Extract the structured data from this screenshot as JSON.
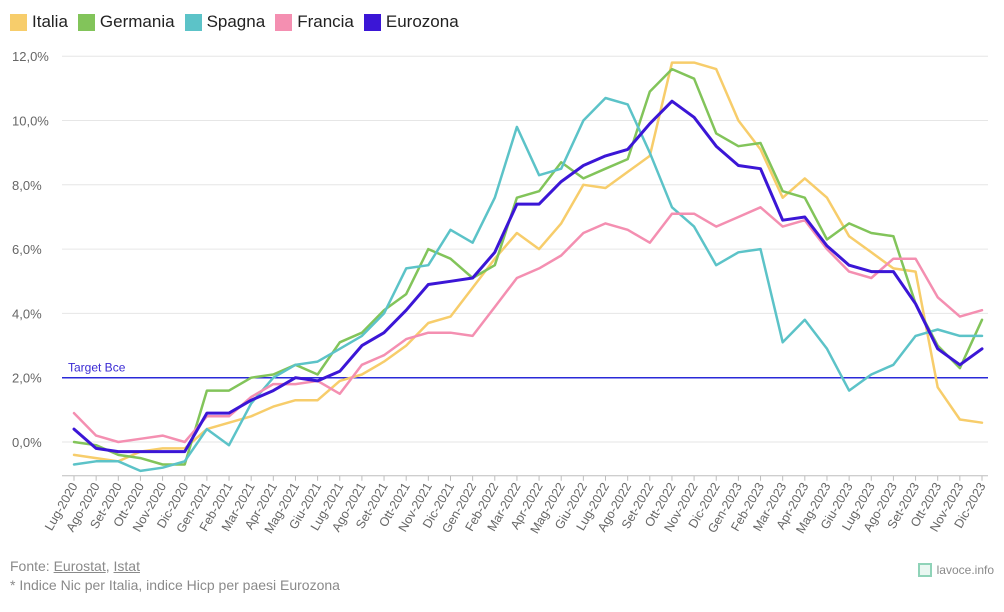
{
  "legend": [
    {
      "name": "Italia",
      "color": "#f7cd6b"
    },
    {
      "name": "Germania",
      "color": "#82c45a"
    },
    {
      "name": "Spagna",
      "color": "#5cc3c8"
    },
    {
      "name": "Francia",
      "color": "#f48fb1"
    },
    {
      "name": "Eurozona",
      "color": "#3b16d6"
    }
  ],
  "footer": {
    "prefix": "Fonte: ",
    "source1": "Eurostat",
    "sep": ", ",
    "source2": "Istat",
    "note": "* Indice Nic per Italia, indice Hicp per paesi Eurozona"
  },
  "brand": {
    "label": "lavoce.info"
  },
  "chart_data": {
    "type": "line",
    "title": "",
    "xlabel": "",
    "ylabel": "",
    "ylim": [
      -1,
      12
    ],
    "yticks": [
      "0,0%",
      "2,0%",
      "4,0%",
      "6,0%",
      "8,0%",
      "10,0%",
      "12,0%"
    ],
    "ytick_values": [
      0,
      2,
      4,
      6,
      8,
      10,
      12
    ],
    "grid": true,
    "legend_position": "top-left",
    "x": [
      "Lug-2020",
      "Ago-2020",
      "Set-2020",
      "Ott-2020",
      "Nov-2020",
      "Dic-2020",
      "Gen-2021",
      "Feb-2021",
      "Mar-2021",
      "Apr-2021",
      "Mag-2021",
      "Giu-2021",
      "Lug-2021",
      "Ago-2021",
      "Set-2021",
      "Ott-2021",
      "Nov-2021",
      "Dic-2021",
      "Gen-2022",
      "Feb-2022",
      "Mar-2022",
      "Apr-2022",
      "Mag-2022",
      "Giu-2022",
      "Lug-2022",
      "Ago-2022",
      "Set-2022",
      "Ott-2022",
      "Nov-2022",
      "Dic-2022",
      "Gen-2023",
      "Feb-2023",
      "Mar-2023",
      "Apr-2023",
      "Mag-2023",
      "Giu-2023",
      "Lug-2023",
      "Ago-2023",
      "Set-2023",
      "Ott-2023",
      "Nov-2023",
      "Dic-2023"
    ],
    "series": [
      {
        "name": "Italia",
        "color": "#f7cd6b",
        "values": [
          -0.4,
          -0.5,
          -0.6,
          -0.3,
          -0.2,
          -0.2,
          0.4,
          0.6,
          0.8,
          1.1,
          1.3,
          1.3,
          1.9,
          2.1,
          2.5,
          3.0,
          3.7,
          3.9,
          4.8,
          5.7,
          6.5,
          6.0,
          6.8,
          8.0,
          7.9,
          8.4,
          8.9,
          11.8,
          11.8,
          11.6,
          10.0,
          9.1,
          7.6,
          8.2,
          7.6,
          6.4,
          5.9,
          5.4,
          5.3,
          1.7,
          0.7,
          0.6
        ]
      },
      {
        "name": "Germania",
        "color": "#82c45a",
        "values": [
          0.0,
          -0.1,
          -0.4,
          -0.5,
          -0.7,
          -0.7,
          1.6,
          1.6,
          2.0,
          2.1,
          2.4,
          2.1,
          3.1,
          3.4,
          4.1,
          4.6,
          6.0,
          5.7,
          5.1,
          5.5,
          7.6,
          7.8,
          8.7,
          8.2,
          8.5,
          8.8,
          10.9,
          11.6,
          11.3,
          9.6,
          9.2,
          9.3,
          7.8,
          7.6,
          6.3,
          6.8,
          6.5,
          6.4,
          4.3,
          3.0,
          2.3,
          3.8
        ]
      },
      {
        "name": "Spagna",
        "color": "#5cc3c8",
        "values": [
          -0.7,
          -0.6,
          -0.6,
          -0.9,
          -0.8,
          -0.6,
          0.4,
          -0.1,
          1.2,
          2.0,
          2.4,
          2.5,
          2.9,
          3.3,
          4.0,
          5.4,
          5.5,
          6.6,
          6.2,
          7.6,
          9.8,
          8.3,
          8.5,
          10.0,
          10.7,
          10.5,
          9.0,
          7.3,
          6.7,
          5.5,
          5.9,
          6.0,
          3.1,
          3.8,
          2.9,
          1.6,
          2.1,
          2.4,
          3.3,
          3.5,
          3.3,
          3.3
        ]
      },
      {
        "name": "Francia",
        "color": "#f48fb1",
        "values": [
          0.9,
          0.2,
          0.0,
          0.1,
          0.2,
          0.0,
          0.8,
          0.8,
          1.4,
          1.8,
          1.8,
          1.9,
          1.5,
          2.4,
          2.7,
          3.2,
          3.4,
          3.4,
          3.3,
          4.2,
          5.1,
          5.4,
          5.8,
          6.5,
          6.8,
          6.6,
          6.2,
          7.1,
          7.1,
          6.7,
          7.0,
          7.3,
          6.7,
          6.9,
          6.0,
          5.3,
          5.1,
          5.7,
          5.7,
          4.5,
          3.9,
          4.1
        ]
      },
      {
        "name": "Eurozona",
        "color": "#3b16d6",
        "values": [
          0.4,
          -0.2,
          -0.3,
          -0.3,
          -0.3,
          -0.3,
          0.9,
          0.9,
          1.3,
          1.6,
          2.0,
          1.9,
          2.2,
          3.0,
          3.4,
          4.1,
          4.9,
          5.0,
          5.1,
          5.9,
          7.4,
          7.4,
          8.1,
          8.6,
          8.9,
          9.1,
          9.9,
          10.6,
          10.1,
          9.2,
          8.6,
          8.5,
          6.9,
          7.0,
          6.1,
          5.5,
          5.3,
          5.3,
          4.3,
          2.9,
          2.4,
          2.9
        ]
      }
    ],
    "reference_line": {
      "value": 2.0,
      "label": "Target Bce",
      "color": "#2a2ad8"
    }
  }
}
